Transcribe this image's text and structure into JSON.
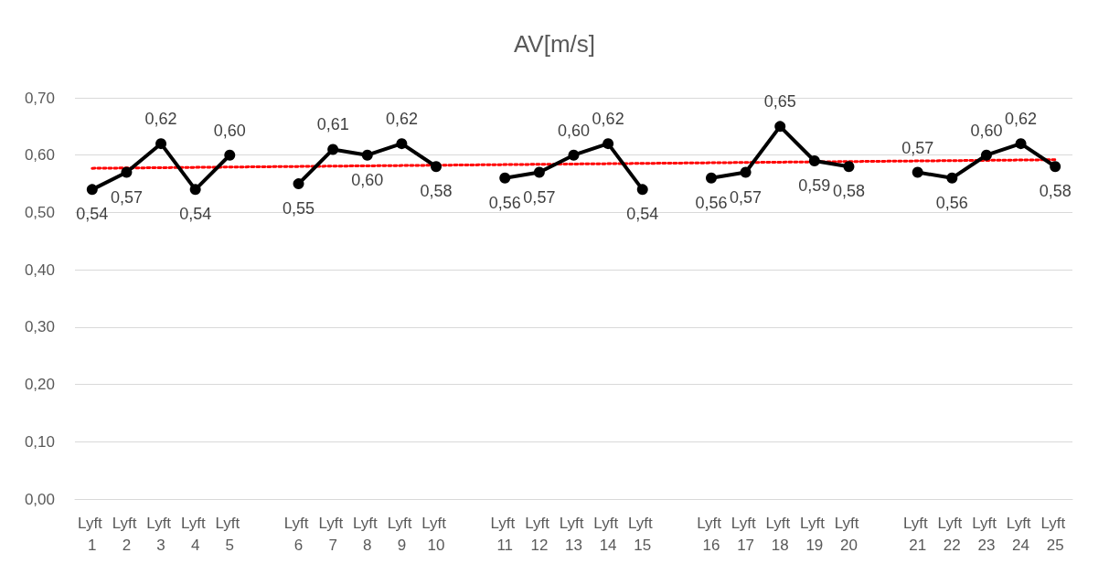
{
  "chart_data": {
    "type": "line",
    "title": "AV[m/s]",
    "categories": [
      "Lyft 1",
      "Lyft 2",
      "Lyft 3",
      "Lyft 4",
      "Lyft 5",
      null,
      "Lyft 6",
      "Lyft 7",
      "Lyft 8",
      "Lyft 9",
      "Lyft 10",
      null,
      "Lyft 11",
      "Lyft 12",
      "Lyft 13",
      "Lyft 14",
      "Lyft 15",
      null,
      "Lyft 16",
      "Lyft 17",
      "Lyft 18",
      "Lyft 19",
      "Lyft 20",
      null,
      "Lyft 21",
      "Lyft 22",
      "Lyft 23",
      "Lyft 24",
      "Lyft 25"
    ],
    "series": [
      {
        "color": "#000000",
        "marker": "circle",
        "line_style": "solid",
        "values": [
          0.54,
          0.57,
          0.62,
          0.54,
          0.6,
          null,
          0.55,
          0.61,
          0.6,
          0.62,
          0.58,
          null,
          0.56,
          0.57,
          0.6,
          0.62,
          0.54,
          null,
          0.56,
          0.57,
          0.65,
          0.59,
          0.58,
          null,
          0.57,
          0.56,
          0.6,
          0.62,
          0.58
        ],
        "value_labels": [
          "0,54",
          "0,57",
          "0,62",
          "0,54",
          "0,60",
          null,
          "0,55",
          "0,61",
          "0,60",
          "0,62",
          "0,58",
          null,
          "0,56",
          "0,57",
          "0,60",
          "0,62",
          "0,54",
          null,
          "0,56",
          "0,57",
          "0,65",
          "0,59",
          "0,58",
          null,
          "0,57",
          "0,56",
          "0,60",
          "0,62",
          "0,58"
        ]
      },
      {
        "type": "line",
        "color": "#ff0000",
        "marker": "none",
        "line_style": "dotted",
        "x": [
          "Lyft 1",
          "Lyft 25"
        ],
        "values": [
          0.577,
          0.592
        ]
      }
    ],
    "ylim": [
      0,
      0.7
    ],
    "yticks": [
      {
        "value": 0,
        "label": "0,00"
      },
      {
        "value": 0.1,
        "label": "0,10"
      },
      {
        "value": 0.2,
        "label": "0,20"
      },
      {
        "value": 0.3,
        "label": "0,30"
      },
      {
        "value": 0.4,
        "label": "0,40"
      },
      {
        "value": 0.5,
        "label": "0,50"
      },
      {
        "value": 0.6,
        "label": "0,60"
      },
      {
        "value": 0.7,
        "label": "0,70"
      }
    ],
    "grid": "y"
  }
}
